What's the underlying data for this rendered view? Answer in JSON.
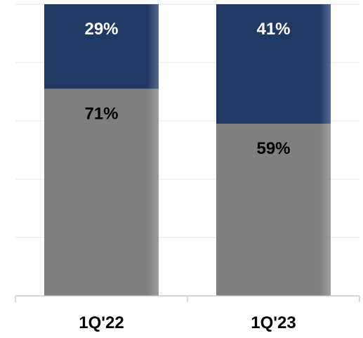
{
  "chart_data": {
    "type": "bar",
    "stacked": true,
    "percent": true,
    "categories": [
      "1Q'22",
      "1Q'23"
    ],
    "series": [
      {
        "values": [
          71,
          59
        ],
        "labels": [
          "71%",
          "59%"
        ],
        "color": "#7f7f7f",
        "label_color": "#000000"
      },
      {
        "values": [
          29,
          41
        ],
        "labels": [
          "29%",
          "41%"
        ],
        "color": "#1f3864",
        "label_color": "#ffffff"
      }
    ],
    "title": "",
    "xlabel": "",
    "ylabel": "",
    "ylim": [
      0,
      100
    ],
    "grid": true,
    "legend": "none"
  }
}
